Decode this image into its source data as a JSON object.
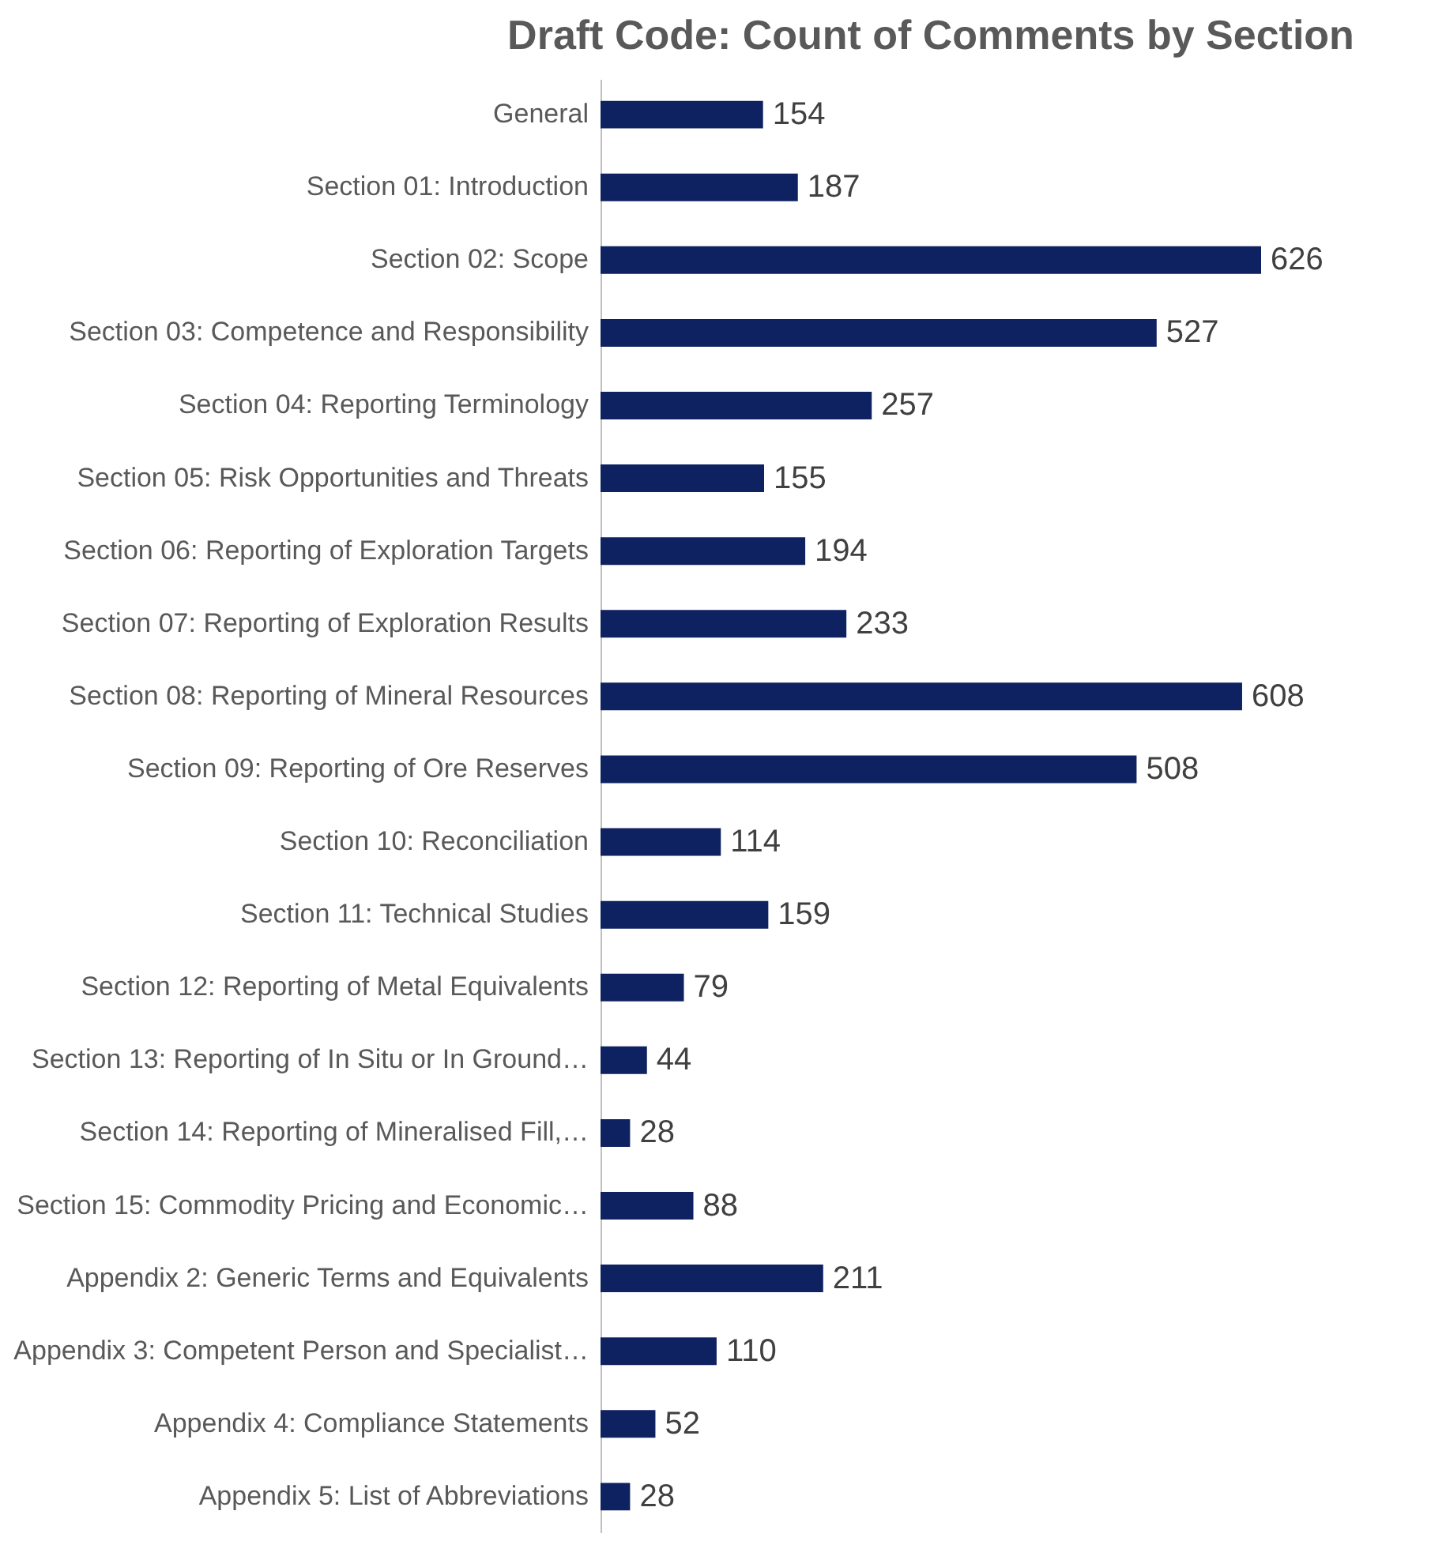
{
  "chart_data": {
    "type": "bar",
    "orientation": "horizontal",
    "title": "Draft Code: Count of Comments by Section",
    "categories": [
      "General",
      "Section 01: Introduction",
      "Section 02: Scope",
      "Section 03: Competence and Responsibility",
      "Section 04: Reporting Terminology",
      "Section 05: Risk Opportunities and Threats",
      "Section 06: Reporting of Exploration Targets",
      "Section 07: Reporting of Exploration Results",
      "Section 08: Reporting of Mineral Resources",
      "Section 09: Reporting of Ore Reserves",
      "Section 10: Reconciliation",
      "Section 11: Technical Studies",
      "Section 12: Reporting of Metal Equivalents",
      "Section 13: Reporting of In Situ or In Ground…",
      "Section 14: Reporting of Mineralised Fill,…",
      "Section 15: Commodity Pricing and Economic…",
      "Appendix 2: Generic Terms and Equivalents",
      "Appendix 3: Competent Person and Specialist…",
      "Appendix 4: Compliance Statements",
      "Appendix 5: List of Abbreviations"
    ],
    "values": [
      154,
      187,
      626,
      527,
      257,
      155,
      194,
      233,
      608,
      508,
      114,
      159,
      79,
      44,
      28,
      88,
      211,
      110,
      52,
      28
    ],
    "color": "#0e2160",
    "data_labels": true,
    "tick_labels": "y"
  }
}
